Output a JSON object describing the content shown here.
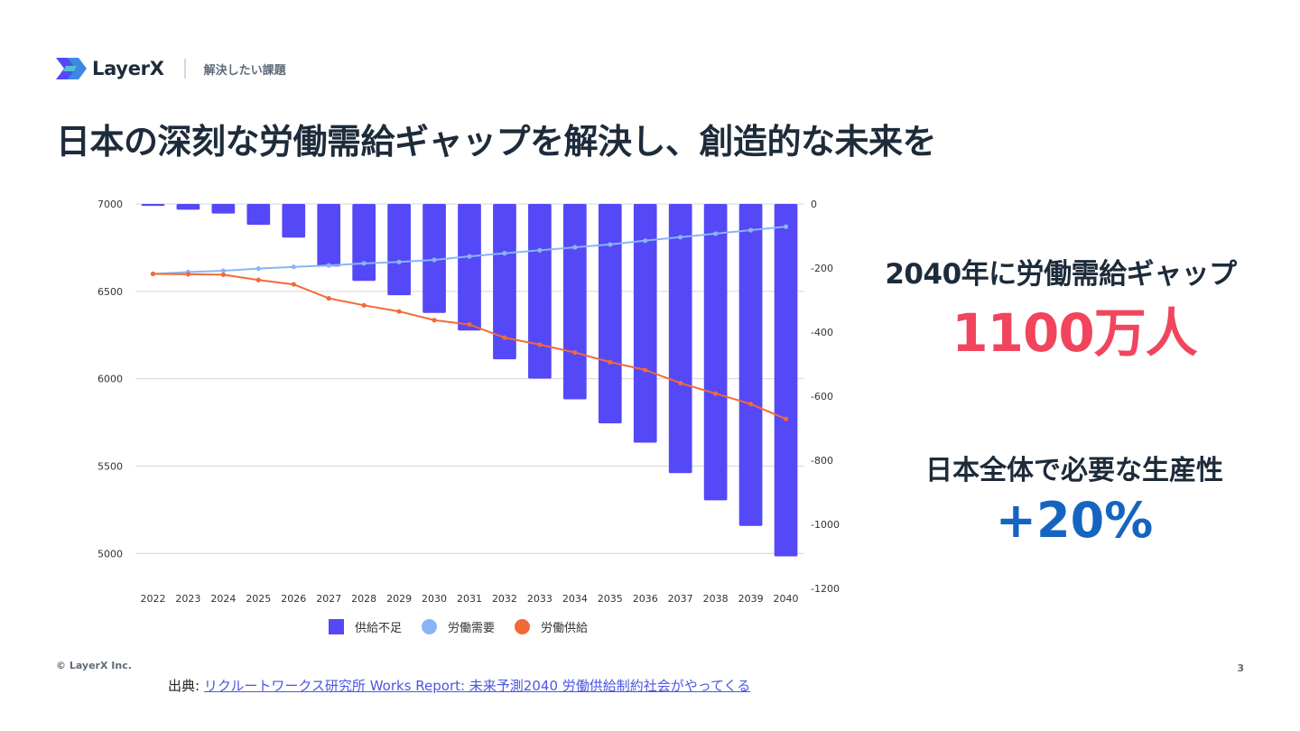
{
  "header": {
    "brand": "LayerX",
    "section": "解決したい課題"
  },
  "title": "日本の深刻な労働需給ギャップを解決し、創造的な未来を",
  "chart_data": {
    "type": "bar+line",
    "categories": [
      "2022",
      "2023",
      "2024",
      "2025",
      "2026",
      "2027",
      "2028",
      "2029",
      "2030",
      "2031",
      "2032",
      "2033",
      "2034",
      "2035",
      "2036",
      "2037",
      "2038",
      "2039",
      "2040"
    ],
    "left_axis": {
      "ticks": [
        7000,
        6500,
        6000,
        5500,
        5000
      ],
      "range": [
        4800,
        7000
      ]
    },
    "right_axis": {
      "ticks": [
        0,
        -200,
        -400,
        -600,
        -800,
        -1000,
        -1200
      ],
      "range": [
        -1200,
        0
      ]
    },
    "series": [
      {
        "name": "供給不足",
        "type": "bar",
        "axis": "right",
        "color": "#5548f7",
        "values": [
          -6,
          -18,
          -30,
          -65,
          -105,
          -195,
          -240,
          -285,
          -340,
          -395,
          -485,
          -545,
          -610,
          -685,
          -745,
          -840,
          -925,
          -1005,
          -1100
        ]
      },
      {
        "name": "労働需要",
        "type": "line",
        "axis": "left",
        "color": "#8ab4f8",
        "values": [
          6600,
          6610,
          6618,
          6630,
          6640,
          6648,
          6660,
          6668,
          6680,
          6700,
          6718,
          6735,
          6752,
          6768,
          6790,
          6810,
          6830,
          6850,
          6870
        ]
      },
      {
        "name": "労働供給",
        "type": "line",
        "axis": "left",
        "color": "#f26a35",
        "values": [
          6600,
          6598,
          6595,
          6565,
          6540,
          6460,
          6420,
          6385,
          6335,
          6310,
          6235,
          6195,
          6150,
          6095,
          6050,
          5975,
          5915,
          5855,
          5770
        ]
      }
    ]
  },
  "stats": {
    "gap_label": "2040年に労働需給ギャップ",
    "gap_value": "1100万人",
    "productivity_label": "日本全体で必要な生産性",
    "productivity_value": "+20%"
  },
  "footer": {
    "copyright": "© LayerX Inc.",
    "page_number": "3",
    "source_prefix": "出典: ",
    "source_link": "リクルートワークス研究所 Works Report: 未来予測2040 労働供給制約社会がやってくる"
  }
}
